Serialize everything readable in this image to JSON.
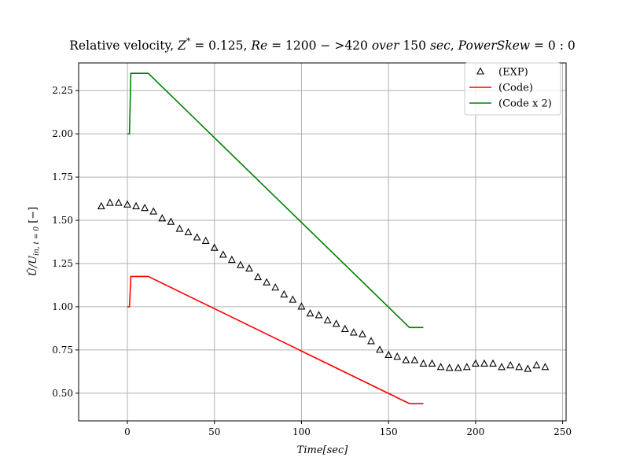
{
  "chart_data": {
    "type": "line",
    "title": "Relative velocity, Z* = 0.125, Re = 1200 − >420 over 150 sec, PowerSkew = 0 : 0",
    "title_parts": {
      "prefix": "Relative velocity, ",
      "z": "Z",
      "star": "*",
      "rest1": " = 0.125, ",
      "re": "Re",
      "rest2": " = 1200 − >420 ",
      "over": "over",
      "rest3": " 150 ",
      "sec": "sec",
      "rest4": ",  ",
      "ps": "PowerSkew",
      "rest5": " = 0 : 0"
    },
    "xlabel": "Time[sec]",
    "ylabel": "Ū/U_in, t=0 [−]",
    "ylabel_parts": {
      "main": "Ū/U",
      "sub": "in, t = 0",
      "unit": " [−]"
    },
    "xlim": [
      -28,
      252
    ],
    "ylim": [
      0.34,
      2.41
    ],
    "xticks": [
      0,
      50,
      100,
      150,
      200,
      250
    ],
    "yticks": [
      "0.50",
      "0.75",
      "1.00",
      "1.25",
      "1.50",
      "1.75",
      "2.00",
      "2.25"
    ],
    "grid": true,
    "legend_position": "top-right",
    "series": [
      {
        "name": "(EXP)",
        "style": "triangle-markers",
        "color": "#000000",
        "x": [
          -15,
          -10,
          -5,
          0,
          5,
          10,
          15,
          20,
          25,
          30,
          35,
          40,
          45,
          50,
          55,
          60,
          65,
          70,
          75,
          80,
          85,
          90,
          95,
          100,
          105,
          110,
          115,
          120,
          125,
          130,
          135,
          140,
          145,
          150,
          155,
          160,
          165,
          170,
          175,
          180,
          185,
          190,
          195,
          200,
          205,
          210,
          215,
          220,
          225,
          230,
          235,
          240
        ],
        "y": [
          1.58,
          1.6,
          1.6,
          1.59,
          1.58,
          1.57,
          1.55,
          1.51,
          1.49,
          1.45,
          1.43,
          1.4,
          1.38,
          1.34,
          1.3,
          1.27,
          1.24,
          1.22,
          1.17,
          1.14,
          1.11,
          1.07,
          1.04,
          1.0,
          0.96,
          0.95,
          0.92,
          0.9,
          0.87,
          0.85,
          0.84,
          0.8,
          0.75,
          0.72,
          0.71,
          0.69,
          0.69,
          0.67,
          0.67,
          0.65,
          0.645,
          0.645,
          0.65,
          0.67,
          0.67,
          0.67,
          0.65,
          0.66,
          0.65,
          0.64,
          0.66,
          0.65
        ]
      },
      {
        "name": "(Code)",
        "style": "line",
        "color": "#ff0000",
        "x": [
          0,
          1.2,
          2,
          12,
          162,
          170
        ],
        "y": [
          1.0,
          1.0,
          1.175,
          1.175,
          0.44,
          0.44
        ]
      },
      {
        "name": "(Code x 2)",
        "style": "line",
        "color": "#008000",
        "x": [
          0,
          1.2,
          2,
          12,
          162,
          170
        ],
        "y": [
          2.0,
          2.0,
          2.35,
          2.35,
          0.88,
          0.88
        ]
      }
    ]
  }
}
